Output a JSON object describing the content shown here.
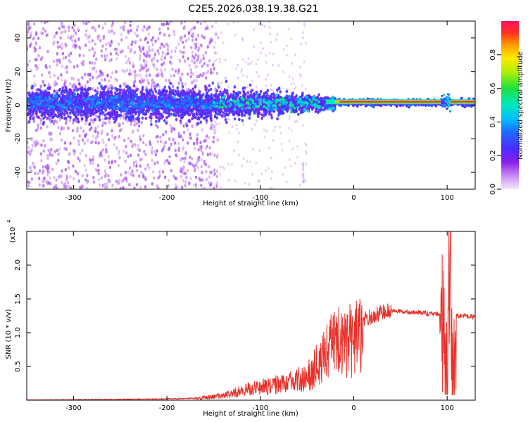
{
  "figure": {
    "title": "C2E5.2026.038.19.38.G21"
  },
  "chart_data": [
    {
      "type": "heatmap",
      "title": "C2E5.2026.038.19.38.G21",
      "xlabel": "Height of straight line (km)",
      "ylabel": "Frequency (Hz)",
      "xlim": [
        -350,
        130
      ],
      "ylim": [
        -50,
        50
      ],
      "xticks": [
        -300,
        -200,
        -100,
        0,
        100
      ],
      "yticks": [
        -40,
        -20,
        0,
        20,
        40
      ],
      "colorbar": {
        "label": "Normalized spectral amplitude",
        "range": [
          0.0,
          1.0
        ],
        "ticks": [
          0.0,
          0.2,
          0.4,
          0.6,
          0.8
        ]
      },
      "description_values": {
        "noise_region_x": [
          -350,
          -150
        ],
        "central_band_hz": [
          -10,
          10
        ],
        "converged_line_from_x": -20,
        "line_frequency_hz": 2
      }
    },
    {
      "type": "line",
      "xlabel": "Height of straight line (km)",
      "ylabel": "SNR (10 * v/v)",
      "yscale_label": "(x10",
      "yscale_exp": "4",
      "xlim": [
        -350,
        130
      ],
      "ylim": [
        0,
        2.5
      ],
      "xticks": [
        -300,
        -200,
        -100,
        0,
        100
      ],
      "yticks": [
        0.5,
        1.0,
        1.5,
        2.0
      ],
      "ytick_labels": [
        "0.5",
        "1.0",
        "1.5",
        "2.0"
      ],
      "series": [
        {
          "name": "SNR",
          "color": "#e8312b",
          "x": [
            -350,
            -300,
            -250,
            -200,
            -170,
            -150,
            -130,
            -110,
            -90,
            -70,
            -50,
            -40,
            -30,
            -20,
            -10,
            0,
            10,
            20,
            30,
            40,
            50,
            60,
            70,
            80,
            90,
            95,
            100,
            103,
            106,
            110,
            120,
            130
          ],
          "values": [
            0.0,
            0.005,
            0.01,
            0.02,
            0.03,
            0.06,
            0.12,
            0.2,
            0.25,
            0.3,
            0.4,
            0.6,
            0.8,
            1.0,
            1.05,
            1.1,
            1.18,
            1.25,
            1.3,
            1.33,
            1.32,
            1.3,
            1.3,
            1.28,
            1.28,
            1.2,
            0.1,
            2.3,
            0.1,
            1.25,
            1.25,
            1.23
          ]
        }
      ]
    }
  ],
  "colors": {
    "axes": "#000000",
    "line": "#e8312b"
  }
}
